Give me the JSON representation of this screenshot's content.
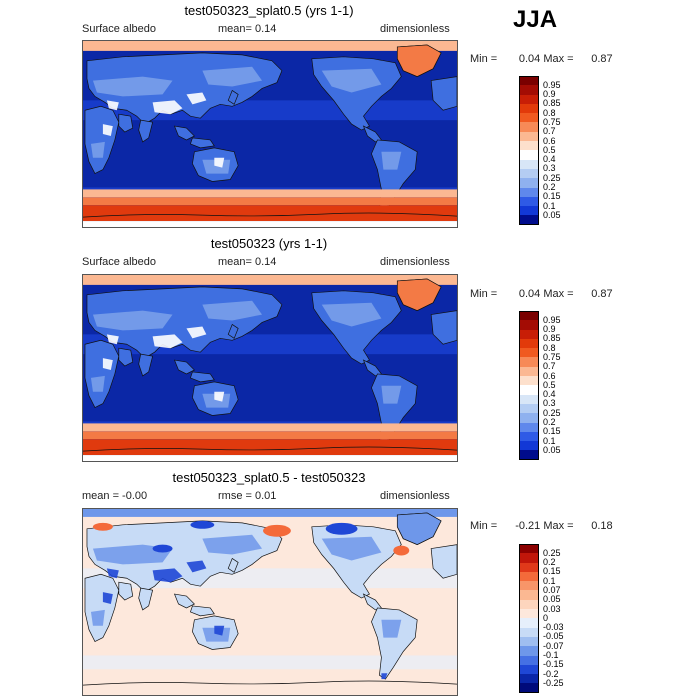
{
  "season": "JJA",
  "panels": [
    {
      "id": "p1",
      "title": "test050323_splat0.5 (yrs 1-1)",
      "left_label": "Surface albedo",
      "center_label": "mean=    0.14",
      "right_label": "dimensionless",
      "stats": {
        "min_label": "Min =",
        "min_value": "0.04",
        "max_label": "Max =",
        "max_value": "0.87"
      },
      "colorbar": {
        "levels": [
          "0.95",
          "0.9",
          "0.85",
          "0.8",
          "0.75",
          "0.7",
          "0.6",
          "0.5",
          "0.4",
          "0.3",
          "0.25",
          "0.2",
          "0.15",
          "0.1",
          "0.05"
        ],
        "colors": [
          "#7a0000",
          "#a30c04",
          "#c81e06",
          "#e23a0a",
          "#f05a20",
          "#f78a57",
          "#fbb892",
          "#fde0cc",
          "#ffffff",
          "#d8e6f7",
          "#b4cdf3",
          "#8fb1ef",
          "#5f88ec",
          "#2f5ae6",
          "#1238d6",
          "#000c8c"
        ]
      },
      "map_colors": {
        "ocean": "#0b27a6",
        "ocean_mid": "#1c45d8",
        "land_low": "#3f6fe0",
        "land_mid": "#7da2ea",
        "snow": "#ffffff",
        "ice_light": "#fbb892",
        "ice_mid": "#f37a45",
        "ice_dark": "#e03a0e"
      }
    },
    {
      "id": "p2",
      "title": "test050323 (yrs 1-1)",
      "left_label": "Surface albedo",
      "center_label": "mean=    0.14",
      "right_label": "dimensionless",
      "stats": {
        "min_label": "Min =",
        "min_value": "0.04",
        "max_label": "Max =",
        "max_value": "0.87"
      },
      "colorbar": {
        "levels": [
          "0.95",
          "0.9",
          "0.85",
          "0.8",
          "0.75",
          "0.7",
          "0.6",
          "0.5",
          "0.4",
          "0.3",
          "0.25",
          "0.2",
          "0.15",
          "0.1",
          "0.05"
        ],
        "colors": [
          "#7a0000",
          "#a30c04",
          "#c81e06",
          "#e23a0a",
          "#f05a20",
          "#f78a57",
          "#fbb892",
          "#fde0cc",
          "#ffffff",
          "#d8e6f7",
          "#b4cdf3",
          "#8fb1ef",
          "#5f88ec",
          "#2f5ae6",
          "#1238d6",
          "#000c8c"
        ]
      },
      "map_colors": {
        "ocean": "#0b27a6",
        "ocean_mid": "#1c45d8",
        "land_low": "#3f6fe0",
        "land_mid": "#7da2ea",
        "snow": "#ffffff",
        "ice_light": "#fbb892",
        "ice_mid": "#f37a45",
        "ice_dark": "#e03a0e"
      }
    },
    {
      "id": "p3",
      "title": "test050323_splat0.5 - test050323",
      "left_label": "mean =   -0.00",
      "center_label": "rmse =    0.01",
      "right_label": "dimensionless",
      "stats": {
        "min_label": "Min =",
        "min_value": "-0.21",
        "max_label": "Max =",
        "max_value": "0.18"
      },
      "colorbar": {
        "levels": [
          "0.25",
          "0.2",
          "0.15",
          "0.1",
          "0.07",
          "0.05",
          "0.03",
          "0",
          "-0.03",
          "-0.05",
          "-0.07",
          "-0.1",
          "-0.15",
          "-0.2",
          "-0.25"
        ],
        "colors": [
          "#8b0000",
          "#c0160a",
          "#e0391a",
          "#f46a3a",
          "#f89569",
          "#fbb892",
          "#fdd5bd",
          "#fde8dc",
          "#e6effb",
          "#c7dbf6",
          "#9fbef0",
          "#6e97ea",
          "#4570e4",
          "#1f47d6",
          "#0a26a8",
          "#000a7a"
        ]
      },
      "map_colors": {
        "ocean": "#fde8dc",
        "ocean_mid": "#e6effb",
        "land_low": "#c7dbf6",
        "land_mid": "#6e97ea",
        "snow": "#1f47d6",
        "ice_light": "#fdd5bd",
        "ice_mid": "#f46a3a",
        "ice_dark": "#e0391a"
      }
    }
  ]
}
